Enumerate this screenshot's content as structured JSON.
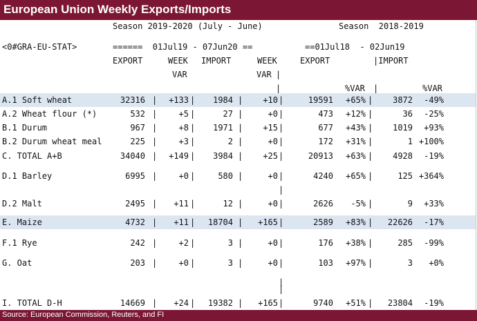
{
  "title": "European Union Weekly Exports/Imports",
  "season_current": "Season 2019-2020 (July - June)",
  "season_prior": "Season  2018-2019",
  "ric_code": "<0#GRA-EU-STAT>",
  "date_range_current": "======  01Jul19 - 07Jun20 ==",
  "date_range_prior": "==01Jul18  - 02Jun19",
  "headers": {
    "export": "EXPORT",
    "week": "WEEK",
    "var": "VAR",
    "import": "IMPORT",
    "export_prior": "EXPORT",
    "import_prior": "|IMPORT",
    "pct_var": "%VAR"
  },
  "rows": [
    {
      "label": "A.1 Soft wheat",
      "export": "32316",
      "week_var": "+133",
      "import": "1984",
      "week_var_imp": "+10",
      "export_prior": "19591",
      "exp_pct": "+65%",
      "import_prior": "3872",
      "imp_pct": "-49%"
    },
    {
      "label": "A.2 Wheat flour (*)",
      "export": "532",
      "week_var": "+5",
      "import": "27",
      "week_var_imp": "+0",
      "export_prior": "473",
      "exp_pct": "+12%",
      "import_prior": "36",
      "imp_pct": "-25%"
    },
    {
      "label": "B.1 Durum",
      "export": "967",
      "week_var": "+8",
      "import": "1971",
      "week_var_imp": "+15",
      "export_prior": "677",
      "exp_pct": "+43%",
      "import_prior": "1019",
      "imp_pct": "+93%"
    },
    {
      "label": "B.2 Durum wheat meal",
      "export": "225",
      "week_var": "+3",
      "import": "2",
      "week_var_imp": "+0",
      "export_prior": "172",
      "exp_pct": "+31%",
      "import_prior": "1",
      "imp_pct": "+100%"
    },
    {
      "label": "C. TOTAL A+B",
      "export": "34040",
      "week_var": "+149",
      "import": "3984",
      "week_var_imp": "+25",
      "export_prior": "20913",
      "exp_pct": "+63%",
      "import_prior": "4928",
      "imp_pct": "-19%"
    },
    {
      "label": "D.1 Barley",
      "export": "6995",
      "week_var": "+0",
      "import": "580",
      "week_var_imp": "+0",
      "export_prior": "4240",
      "exp_pct": "+65%",
      "import_prior": "125",
      "imp_pct": "+364%"
    },
    {
      "label": "D.2 Malt",
      "export": "2495",
      "week_var": "+11",
      "import": "12",
      "week_var_imp": "+0",
      "export_prior": "2626",
      "exp_pct": "-5%",
      "import_prior": "9",
      "imp_pct": "+33%"
    },
    {
      "label": "E. Maize",
      "export": "4732",
      "week_var": "+11",
      "import": "18704",
      "week_var_imp": "+165",
      "export_prior": "2589",
      "exp_pct": "+83%",
      "import_prior": "22626",
      "imp_pct": "-17%"
    },
    {
      "label": "F.1 Rye",
      "export": "242",
      "week_var": "+2",
      "import": "3",
      "week_var_imp": "+0",
      "export_prior": "176",
      "exp_pct": "+38%",
      "import_prior": "285",
      "imp_pct": "-99%"
    },
    {
      "label": "G. Oat",
      "export": "203",
      "week_var": "+0",
      "import": "3",
      "week_var_imp": "+0",
      "export_prior": "103",
      "exp_pct": "+97%",
      "import_prior": "3",
      "imp_pct": "+0%"
    },
    {
      "label": "I. TOTAL D-H",
      "export": "14669",
      "week_var": "+24",
      "import": "19382",
      "week_var_imp": "+165",
      "export_prior": "9740",
      "exp_pct": "+51%",
      "import_prior": "23804",
      "imp_pct": "-19%"
    }
  ],
  "separator": "|",
  "source": "Source: European Commission, Reuters, and FI",
  "colors": {
    "title_bg": "#7b1735",
    "band": "#dce6f1"
  }
}
